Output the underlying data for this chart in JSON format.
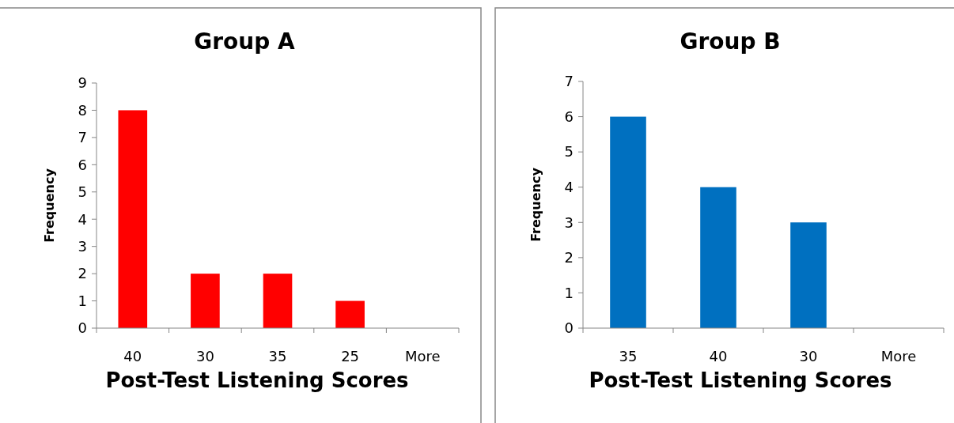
{
  "chart_data": [
    {
      "type": "bar",
      "title": "Group A",
      "xlabel": "Post-Test Listening Scores",
      "ylabel": "Frequency",
      "categories": [
        "40",
        "30",
        "35",
        "25",
        "More"
      ],
      "values": [
        8,
        2,
        2,
        1,
        0
      ],
      "color": "#ff0000",
      "ylim": [
        0,
        9
      ],
      "yticks": [
        0,
        1,
        2,
        3,
        4,
        5,
        6,
        7,
        8,
        9
      ],
      "grid": false
    },
    {
      "type": "bar",
      "title": "Group B",
      "xlabel": "Post-Test Listening Scores",
      "ylabel": "Frequency",
      "categories": [
        "35",
        "40",
        "30",
        "More"
      ],
      "values": [
        6,
        4,
        3,
        0
      ],
      "color": "#0070c0",
      "ylim": [
        0,
        7
      ],
      "yticks": [
        0,
        1,
        2,
        3,
        4,
        5,
        6,
        7
      ],
      "grid": false
    }
  ]
}
